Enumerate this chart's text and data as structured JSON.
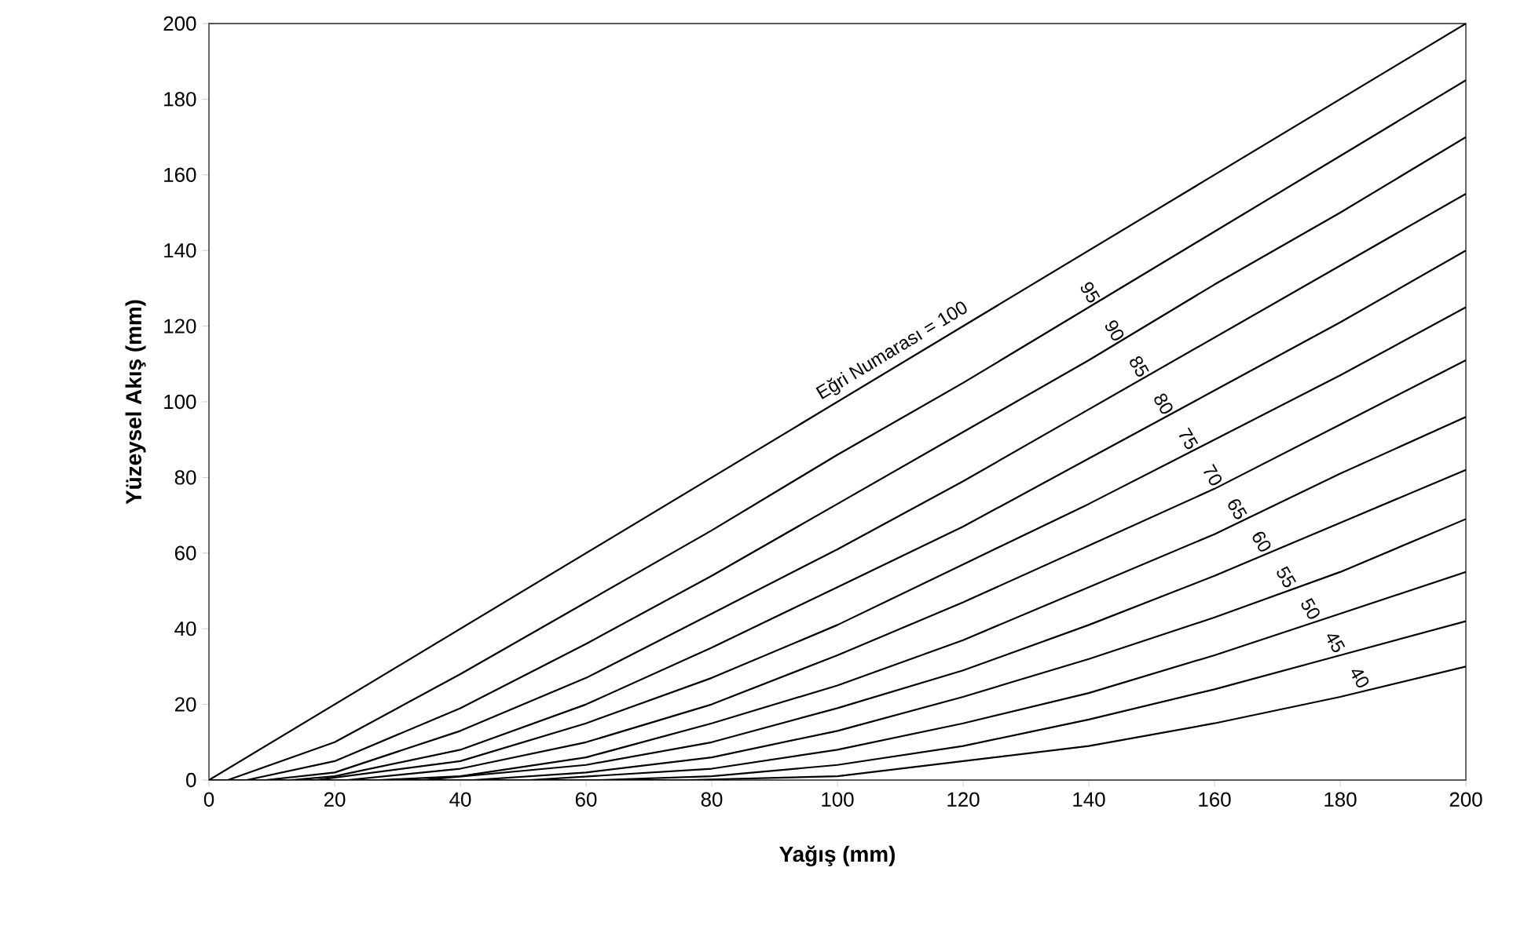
{
  "chart_data": {
    "type": "line",
    "xlabel": "Yağış (mm)",
    "ylabel": "Yüzeysel Akış (mm)",
    "xlim": [
      0,
      200
    ],
    "ylim": [
      0,
      200
    ],
    "xticks": [
      0,
      20,
      40,
      60,
      80,
      100,
      120,
      140,
      160,
      180,
      200
    ],
    "yticks": [
      0,
      20,
      40,
      60,
      80,
      100,
      120,
      140,
      160,
      180,
      200
    ],
    "grid": false,
    "legend": false,
    "marker": "none",
    "line_style": "solid",
    "series": [
      {
        "name": "Eğri Numarası = 100",
        "color": "#000000",
        "x": [
          0,
          200
        ],
        "values": [
          0,
          200
        ]
      },
      {
        "name": "95",
        "color": "#000000",
        "x": [
          0,
          3,
          20,
          40,
          60,
          80,
          100,
          120,
          140,
          160,
          180,
          200
        ],
        "values": [
          0,
          0,
          10,
          28,
          47,
          66,
          86,
          105,
          125,
          145,
          165,
          185
        ]
      },
      {
        "name": "90",
        "color": "#000000",
        "x": [
          0,
          6,
          20,
          40,
          60,
          80,
          100,
          120,
          140,
          160,
          180,
          200
        ],
        "values": [
          0,
          0,
          5,
          19,
          36,
          54,
          73,
          92,
          111,
          131,
          150,
          170
        ]
      },
      {
        "name": "85",
        "color": "#000000",
        "x": [
          0,
          9,
          20,
          40,
          60,
          80,
          100,
          120,
          140,
          160,
          180,
          200
        ],
        "values": [
          0,
          0,
          2,
          13,
          27,
          44,
          61,
          79,
          98,
          117,
          136,
          155
        ]
      },
      {
        "name": "80",
        "color": "#000000",
        "x": [
          0,
          13,
          20,
          40,
          60,
          80,
          100,
          120,
          140,
          160,
          180,
          200
        ],
        "values": [
          0,
          0,
          1,
          8,
          20,
          35,
          51,
          67,
          85,
          103,
          121,
          140
        ]
      },
      {
        "name": "75",
        "color": "#000000",
        "x": [
          0,
          17,
          40,
          60,
          80,
          100,
          120,
          140,
          160,
          180,
          200
        ],
        "values": [
          0,
          0,
          5,
          15,
          27,
          41,
          57,
          73,
          90,
          107,
          125
        ]
      },
      {
        "name": "70",
        "color": "#000000",
        "x": [
          0,
          22,
          40,
          60,
          80,
          100,
          120,
          140,
          160,
          180,
          200
        ],
        "values": [
          0,
          0,
          3,
          10,
          20,
          33,
          47,
          62,
          77,
          94,
          111
        ]
      },
      {
        "name": "65",
        "color": "#000000",
        "x": [
          0,
          27,
          40,
          60,
          80,
          100,
          120,
          140,
          160,
          180,
          200
        ],
        "values": [
          0,
          0,
          1,
          6,
          15,
          25,
          37,
          51,
          65,
          81,
          96
        ]
      },
      {
        "name": "60",
        "color": "#000000",
        "x": [
          0,
          34,
          60,
          80,
          100,
          120,
          140,
          160,
          180,
          200
        ],
        "values": [
          0,
          0,
          4,
          10,
          19,
          29,
          41,
          54,
          68,
          82
        ]
      },
      {
        "name": "55",
        "color": "#000000",
        "x": [
          0,
          42,
          60,
          80,
          100,
          120,
          140,
          160,
          180,
          200
        ],
        "values": [
          0,
          0,
          2,
          6,
          13,
          22,
          32,
          43,
          55,
          69
        ]
      },
      {
        "name": "50",
        "color": "#000000",
        "x": [
          0,
          51,
          80,
          100,
          120,
          140,
          160,
          180,
          200
        ],
        "values": [
          0,
          0,
          3,
          8,
          15,
          23,
          33,
          44,
          55
        ]
      },
      {
        "name": "45",
        "color": "#000000",
        "x": [
          0,
          62,
          80,
          100,
          120,
          140,
          160,
          180,
          200
        ],
        "values": [
          0,
          0,
          1,
          4,
          9,
          16,
          24,
          33,
          42
        ]
      },
      {
        "name": "40",
        "color": "#000000",
        "x": [
          0,
          76,
          100,
          120,
          140,
          160,
          180,
          200
        ],
        "values": [
          0,
          0,
          1,
          5,
          9,
          15,
          22,
          30
        ]
      }
    ]
  }
}
